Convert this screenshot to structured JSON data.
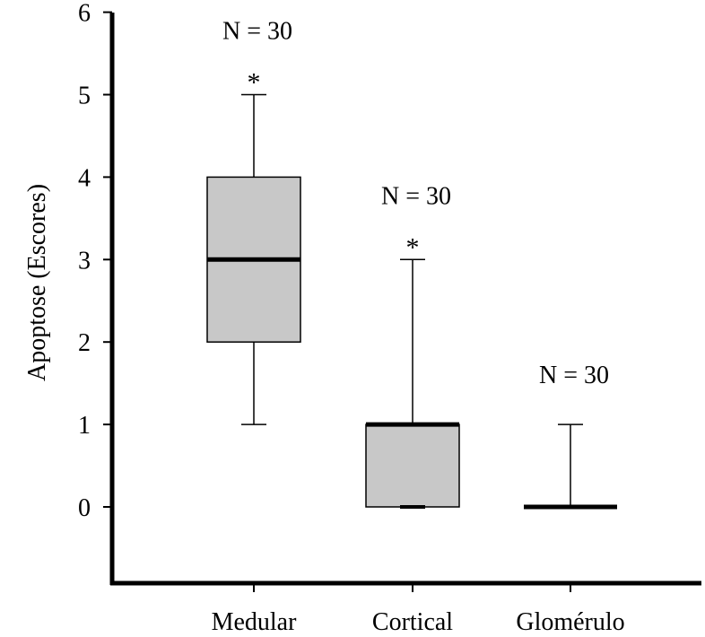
{
  "chart_data": {
    "type": "boxplot",
    "title": "",
    "xlabel": "",
    "ylabel": "Apoptose (Escores)",
    "ylim": [
      -0.9,
      6
    ],
    "yticks": [
      "0",
      "1",
      "2",
      "3",
      "4",
      "5",
      "6"
    ],
    "grid": false,
    "categories": [
      "Medular",
      "Cortical",
      "Glomérulo"
    ],
    "boxes": [
      {
        "category": "Medular",
        "whisker_low": 1,
        "q1": 2,
        "median": 3,
        "q3": 4,
        "whisker_high": 5,
        "n_label": "N = 30",
        "marker": "*"
      },
      {
        "category": "Cortical",
        "whisker_low": 0,
        "q1": 0,
        "median": 1,
        "q3": 1,
        "whisker_high": 3,
        "n_label": "N = 30",
        "marker": "*"
      },
      {
        "category": "Glomérulo",
        "whisker_low": 0,
        "q1": 0,
        "median": 0,
        "q3": 0,
        "whisker_high": 1,
        "n_label": "N = 30",
        "marker": ""
      }
    ],
    "colors": {
      "box_fill": "#c8c8c8",
      "line": "#000000"
    }
  }
}
